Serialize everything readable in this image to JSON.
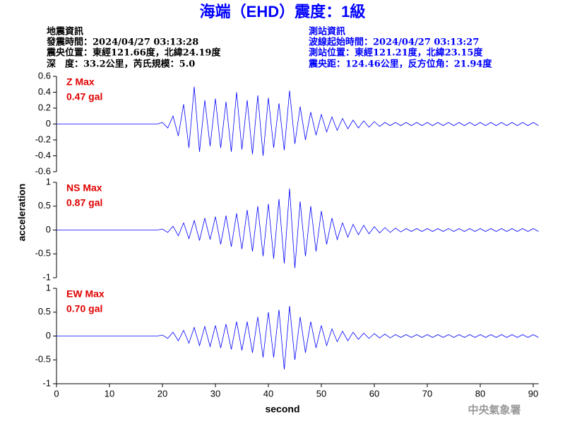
{
  "header": {
    "title": "海端（EHD）震度：1級",
    "left": [
      "地震資訊",
      "發震時間：2024/04/27 03:13:28",
      "震央位置：東經121.66度，北緯24.19度",
      "深　度：33.2公里，芮氏規模：5.0"
    ],
    "right": [
      "測站資訊",
      "波線起始時間：2024/04/27 03:13:27",
      "測站位置：東經121.21度，北緯23.15度",
      "震央距：124.46公里，反方位角：21.94度"
    ],
    "footer": "中央氣象署"
  },
  "chart_data": [
    {
      "type": "line",
      "color": "#0000ff",
      "annotations": [
        "Z Max",
        "0.47 gal"
      ],
      "xlim": [
        0,
        91
      ],
      "ylim": [
        -0.6,
        0.6
      ],
      "yticks": [
        0.6,
        0.4,
        0.2,
        0,
        -0.2,
        -0.4,
        -0.6
      ],
      "x": [
        0,
        1,
        2,
        3,
        4,
        5,
        6,
        7,
        8,
        9,
        10,
        11,
        12,
        13,
        14,
        15,
        16,
        17,
        18,
        19,
        20,
        21,
        22,
        23,
        24,
        25,
        26,
        27,
        28,
        29,
        30,
        31,
        32,
        33,
        34,
        35,
        36,
        37,
        38,
        39,
        40,
        41,
        42,
        43,
        44,
        45,
        46,
        47,
        48,
        49,
        50,
        51,
        52,
        53,
        54,
        55,
        56,
        57,
        58,
        59,
        60,
        61,
        62,
        63,
        64,
        65,
        66,
        67,
        68,
        69,
        70,
        71,
        72,
        73,
        74,
        75,
        76,
        77,
        78,
        79,
        80,
        81,
        82,
        83,
        84,
        85,
        86,
        87,
        88,
        89,
        90,
        91
      ],
      "values": [
        0,
        0,
        0,
        0,
        0,
        0,
        0,
        0,
        0,
        0,
        0,
        0,
        0,
        0,
        0,
        0,
        0,
        0,
        0,
        0,
        0.02,
        -0.05,
        0.1,
        -0.15,
        0.25,
        -0.3,
        0.47,
        -0.35,
        0.3,
        -0.28,
        0.32,
        -0.3,
        0.28,
        -0.35,
        0.4,
        -0.32,
        0.3,
        -0.38,
        0.36,
        -0.4,
        0.33,
        -0.3,
        0.26,
        -0.33,
        0.42,
        -0.25,
        0.22,
        -0.2,
        0.15,
        -0.14,
        0.12,
        -0.1,
        0.09,
        -0.08,
        0.07,
        -0.06,
        0.05,
        -0.05,
        0.04,
        -0.04,
        0.03,
        -0.03,
        0.02,
        -0.02,
        0.02,
        -0.02,
        0.02,
        -0.02,
        0.02,
        -0.02,
        0.02,
        -0.02,
        0.02,
        -0.02,
        0.02,
        -0.02,
        0.02,
        -0.02,
        0.02,
        -0.02,
        0.02,
        -0.02,
        0.02,
        -0.02,
        0.02,
        -0.02,
        0.02,
        -0.02,
        0.02,
        -0.02,
        0.02,
        -0.02
      ]
    },
    {
      "type": "line",
      "color": "#0000ff",
      "annotations": [
        "NS Max",
        "0.87 gal"
      ],
      "ylabel": "acceleration",
      "xlim": [
        0,
        91
      ],
      "ylim": [
        -1,
        1
      ],
      "yticks": [
        1,
        0.5,
        0,
        -0.5,
        -1
      ],
      "x": [
        0,
        1,
        2,
        3,
        4,
        5,
        6,
        7,
        8,
        9,
        10,
        11,
        12,
        13,
        14,
        15,
        16,
        17,
        18,
        19,
        20,
        21,
        22,
        23,
        24,
        25,
        26,
        27,
        28,
        29,
        30,
        31,
        32,
        33,
        34,
        35,
        36,
        37,
        38,
        39,
        40,
        41,
        42,
        43,
        44,
        45,
        46,
        47,
        48,
        49,
        50,
        51,
        52,
        53,
        54,
        55,
        56,
        57,
        58,
        59,
        60,
        61,
        62,
        63,
        64,
        65,
        66,
        67,
        68,
        69,
        70,
        71,
        72,
        73,
        74,
        75,
        76,
        77,
        78,
        79,
        80,
        81,
        82,
        83,
        84,
        85,
        86,
        87,
        88,
        89,
        90,
        91
      ],
      "values": [
        0,
        0,
        0,
        0,
        0,
        0,
        0,
        0,
        0,
        0,
        0,
        0,
        0,
        0,
        0,
        0,
        0,
        0,
        0,
        0,
        0.02,
        -0.05,
        0.08,
        -0.12,
        0.15,
        -0.18,
        0.2,
        -0.22,
        0.25,
        -0.2,
        0.28,
        -0.3,
        0.3,
        -0.35,
        0.35,
        -0.4,
        0.42,
        -0.45,
        0.5,
        -0.55,
        0.55,
        -0.6,
        0.65,
        -0.7,
        0.87,
        -0.8,
        0.6,
        -0.55,
        0.5,
        -0.45,
        0.4,
        -0.3,
        0.25,
        -0.2,
        0.15,
        -0.15,
        0.12,
        -0.1,
        0.1,
        -0.08,
        0.07,
        -0.06,
        0.05,
        -0.05,
        0.04,
        -0.04,
        0.03,
        -0.03,
        0.03,
        -0.03,
        0.03,
        -0.03,
        0.03,
        -0.03,
        0.03,
        -0.03,
        0.03,
        -0.03,
        0.03,
        -0.03,
        0.03,
        -0.03,
        0.03,
        -0.03,
        0.03,
        -0.03,
        0.03,
        -0.03,
        0.03,
        -0.03,
        0.03,
        -0.03
      ]
    },
    {
      "type": "line",
      "color": "#0000ff",
      "annotations": [
        "EW Max",
        "0.70 gal"
      ],
      "xlabel": "second",
      "xlim": [
        0,
        91
      ],
      "ylim": [
        -1,
        1
      ],
      "yticks": [
        1,
        0.5,
        0,
        -0.5,
        -1
      ],
      "xticks": [
        0,
        10,
        20,
        30,
        40,
        50,
        60,
        70,
        80,
        90
      ],
      "x": [
        0,
        1,
        2,
        3,
        4,
        5,
        6,
        7,
        8,
        9,
        10,
        11,
        12,
        13,
        14,
        15,
        16,
        17,
        18,
        19,
        20,
        21,
        22,
        23,
        24,
        25,
        26,
        27,
        28,
        29,
        30,
        31,
        32,
        33,
        34,
        35,
        36,
        37,
        38,
        39,
        40,
        41,
        42,
        43,
        44,
        45,
        46,
        47,
        48,
        49,
        50,
        51,
        52,
        53,
        54,
        55,
        56,
        57,
        58,
        59,
        60,
        61,
        62,
        63,
        64,
        65,
        66,
        67,
        68,
        69,
        70,
        71,
        72,
        73,
        74,
        75,
        76,
        77,
        78,
        79,
        80,
        81,
        82,
        83,
        84,
        85,
        86,
        87,
        88,
        89,
        90,
        91
      ],
      "values": [
        0,
        0,
        0,
        0,
        0,
        0,
        0,
        0,
        0,
        0,
        0,
        0,
        0,
        0,
        0,
        0,
        0,
        0,
        0,
        0,
        0.02,
        -0.05,
        0.08,
        -0.1,
        0.12,
        -0.15,
        0.18,
        -0.2,
        0.2,
        -0.22,
        0.22,
        -0.25,
        0.25,
        -0.28,
        0.3,
        -0.3,
        0.3,
        -0.35,
        0.4,
        -0.45,
        0.5,
        -0.45,
        0.55,
        -0.7,
        0.63,
        -0.5,
        0.4,
        -0.35,
        0.3,
        -0.25,
        0.22,
        -0.2,
        0.15,
        -0.12,
        0.1,
        -0.1,
        0.08,
        -0.07,
        0.06,
        -0.05,
        0.05,
        -0.04,
        0.04,
        -0.04,
        0.03,
        -0.03,
        0.03,
        -0.03,
        0.03,
        -0.03,
        0.03,
        -0.03,
        0.03,
        -0.03,
        0.03,
        -0.03,
        0.03,
        -0.03,
        0.03,
        -0.03,
        0.03,
        -0.03,
        0.03,
        -0.03,
        0.03,
        -0.03,
        0.03,
        -0.03,
        0.03,
        -0.03,
        0.03,
        -0.03
      ]
    }
  ]
}
